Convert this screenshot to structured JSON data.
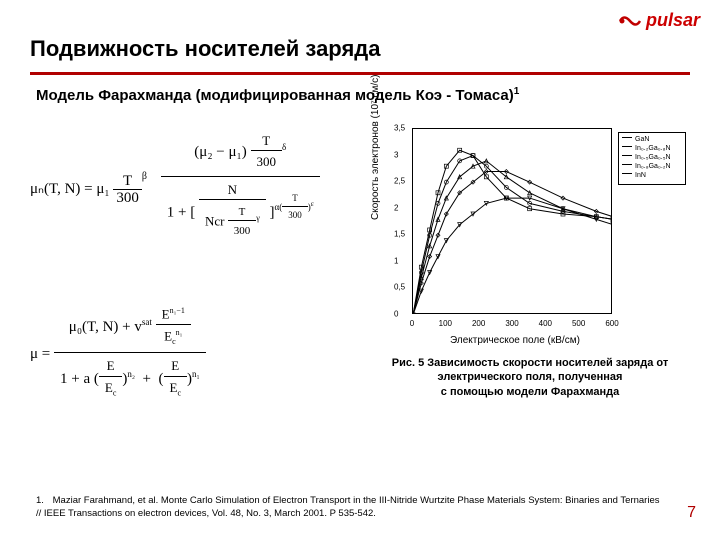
{
  "brand": {
    "name": "pulsar",
    "color": "#c00000"
  },
  "title": "Подвижность носителей заряда",
  "subtitle": "Модель Фарахманда (модифицированная модель Коэ - Томаса)",
  "subtitle_sup": "1",
  "accent_rule_color": "#b00000",
  "formula1": {
    "lhs": "μₙ(T, N) = μ₁",
    "t300_pow": "β",
    "num_right": "(μ₂ − μ₁)",
    "num_right_pow": "δ",
    "den_base": "1 +",
    "den_inner_num": "N",
    "den_inner_den_left": "Ncr",
    "den_inner_pow": "γ",
    "alpha_pow": "ε"
  },
  "formula2": {
    "lhs": "μ =",
    "num_a": "μ₀(T, N) + v",
    "num_sat": "sat",
    "num_frac_top": "E",
    "num_frac_top_sup": "n₁−1",
    "num_frac_bot": "E",
    "num_frac_bot_sub": "c",
    "num_frac_bot_sup": "n₁",
    "den_a": "1 + a",
    "den_f1_top": "E",
    "den_f1_bot": "E",
    "den_f1_bot_sub": "c",
    "den_f1_pow": "n₂",
    "den_f2_top": "E",
    "den_f2_bot": "E",
    "den_f2_bot_sub": "c",
    "den_f2_pow": "n₁"
  },
  "chart": {
    "type": "line",
    "x_label": "Электрическое поле (кВ/см)",
    "y_label": "Скорость электронов (10⁷ см/с)",
    "xlim": [
      0,
      600
    ],
    "xtick_step": 100,
    "ylim": [
      0,
      3.5
    ],
    "ytick_step": 0.5,
    "background_color": "#ffffff",
    "axis_color": "#000000",
    "line_width": 1,
    "marker_size": 2,
    "legend": [
      {
        "label": "GaN"
      },
      {
        "label": "In₀.₂Ga₀.₈N"
      },
      {
        "label": "In₀.₅Ga₀.₅N"
      },
      {
        "label": "In₀.₈Ga₀.₂N"
      },
      {
        "label": "InN"
      }
    ],
    "series": [
      {
        "name": "GaN",
        "color": "#000000",
        "marker": "square",
        "x": [
          0,
          25,
          50,
          75,
          100,
          140,
          180,
          220,
          280,
          350,
          450,
          550,
          600
        ],
        "y": [
          0,
          0.9,
          1.6,
          2.3,
          2.8,
          3.1,
          3.0,
          2.6,
          2.2,
          2.0,
          1.9,
          1.85,
          1.8
        ]
      },
      {
        "name": "In0.2Ga0.8N",
        "color": "#000000",
        "marker": "circle",
        "x": [
          0,
          25,
          50,
          75,
          100,
          140,
          180,
          220,
          280,
          350,
          450,
          550,
          600
        ],
        "y": [
          0,
          0.8,
          1.5,
          2.1,
          2.5,
          2.9,
          3.0,
          2.8,
          2.4,
          2.1,
          1.95,
          1.85,
          1.8
        ]
      },
      {
        "name": "In0.5Ga0.5N",
        "color": "#000000",
        "marker": "triangle",
        "x": [
          0,
          25,
          50,
          75,
          100,
          140,
          180,
          220,
          280,
          350,
          450,
          550,
          600
        ],
        "y": [
          0,
          0.7,
          1.3,
          1.8,
          2.2,
          2.6,
          2.8,
          2.9,
          2.6,
          2.3,
          2.0,
          1.85,
          1.8
        ]
      },
      {
        "name": "In0.8Ga0.2N",
        "color": "#000000",
        "marker": "diamond",
        "x": [
          0,
          25,
          50,
          75,
          100,
          140,
          180,
          220,
          280,
          350,
          450,
          550,
          600
        ],
        "y": [
          0,
          0.6,
          1.1,
          1.5,
          1.9,
          2.3,
          2.5,
          2.7,
          2.7,
          2.5,
          2.2,
          1.95,
          1.85
        ]
      },
      {
        "name": "InN",
        "color": "#000000",
        "marker": "down-triangle",
        "x": [
          0,
          25,
          50,
          75,
          100,
          140,
          180,
          220,
          280,
          350,
          450,
          550,
          600
        ],
        "y": [
          0,
          0.45,
          0.8,
          1.1,
          1.4,
          1.7,
          1.9,
          2.1,
          2.2,
          2.2,
          2.0,
          1.8,
          1.7
        ]
      }
    ]
  },
  "caption_lines": [
    "Рис. 5 Зависимость скорости носителей заряда от",
    "электрического поля, полученная",
    "с помощью модели Фарахманда"
  ],
  "footnote": {
    "num": "1.",
    "text": "Maziar Farahmand, et al. Monte Carlo Simulation of Electron Transport in the III-Nitride Wurtzite Phase Materials System: Binaries and Ternaries // IEEE Transactions on electron devices, Vol. 48, No. 3, March 2001. P 535-542."
  },
  "page_number": "7"
}
